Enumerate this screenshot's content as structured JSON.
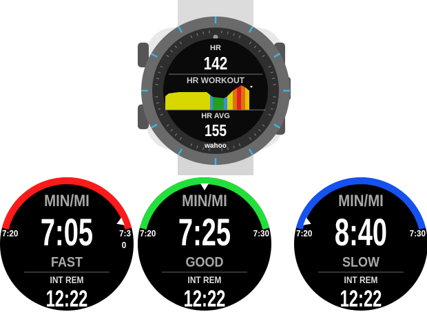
{
  "watch": {
    "brand": "wahoo",
    "top_label": "HR",
    "top_value": "142",
    "section_title": "HR WORKOUT",
    "bottom_label": "HR AVG",
    "bottom_value": "155",
    "bezel_numbers": [
      "05",
      "10",
      "15",
      "20",
      "25",
      "35",
      "40",
      "45",
      "50",
      "55"
    ],
    "accent_color": "#3cb4e6"
  },
  "faces": [
    {
      "unit": "MIN/MI",
      "pace": "7:05",
      "status": "FAST",
      "left_limit": "7:20",
      "right_limit": "7:3",
      "right_limit_wrap": "0",
      "interval_label": "INT REM",
      "interval_value": "12:22",
      "arc_color": "#ff1a1a"
    },
    {
      "unit": "MIN/MI",
      "pace": "7:25",
      "status": "GOOD",
      "left_limit": "7:20",
      "right_limit": "7:30",
      "interval_label": "INT REM",
      "interval_value": "12:22",
      "arc_color": "#22e03a"
    },
    {
      "unit": "MIN/MI",
      "pace": "8:40",
      "status": "SLOW",
      "left_limit": "7:20",
      "right_limit": "7:30",
      "interval_label": "INT REM",
      "interval_value": "12:22",
      "arc_color": "#1552f0"
    }
  ]
}
